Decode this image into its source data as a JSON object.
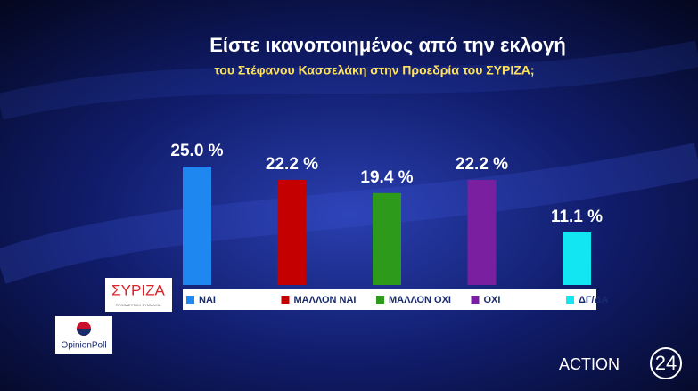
{
  "chart_data": {
    "type": "bar",
    "title": "Είστε ικανοποιημένος από την εκλογή",
    "subtitle": "του Στέφανου Κασσελάκη στην Προεδρία  του ΣΥΡΙΖΑ;",
    "categories": [
      "ΝΑΙ",
      "ΜΑΛΛΟΝ ΝΑΙ",
      "ΜΑΛΛΟΝ ΟΧΙ",
      "ΟΧΙ",
      "ΔΓ/ΔΑ"
    ],
    "values": [
      25.0,
      22.2,
      19.4,
      22.2,
      11.1
    ],
    "value_labels": [
      "25.0 %",
      "22.2 %",
      "19.4 %",
      "22.2 %",
      "11.1 %"
    ],
    "colors": [
      "#1e88f0",
      "#c40000",
      "#2e9a1c",
      "#7a1fa0",
      "#12e6f2"
    ]
  },
  "branding": {
    "party": "ΣΥΡΙΖΑ",
    "party_tagline": "ΠΡΟΟΔΕΥΤΙΚΗ ΣΥΜΜΑΧΙΑ",
    "pollster": "OpinionPoll",
    "channel": "ACTION",
    "channel_number": "24"
  }
}
